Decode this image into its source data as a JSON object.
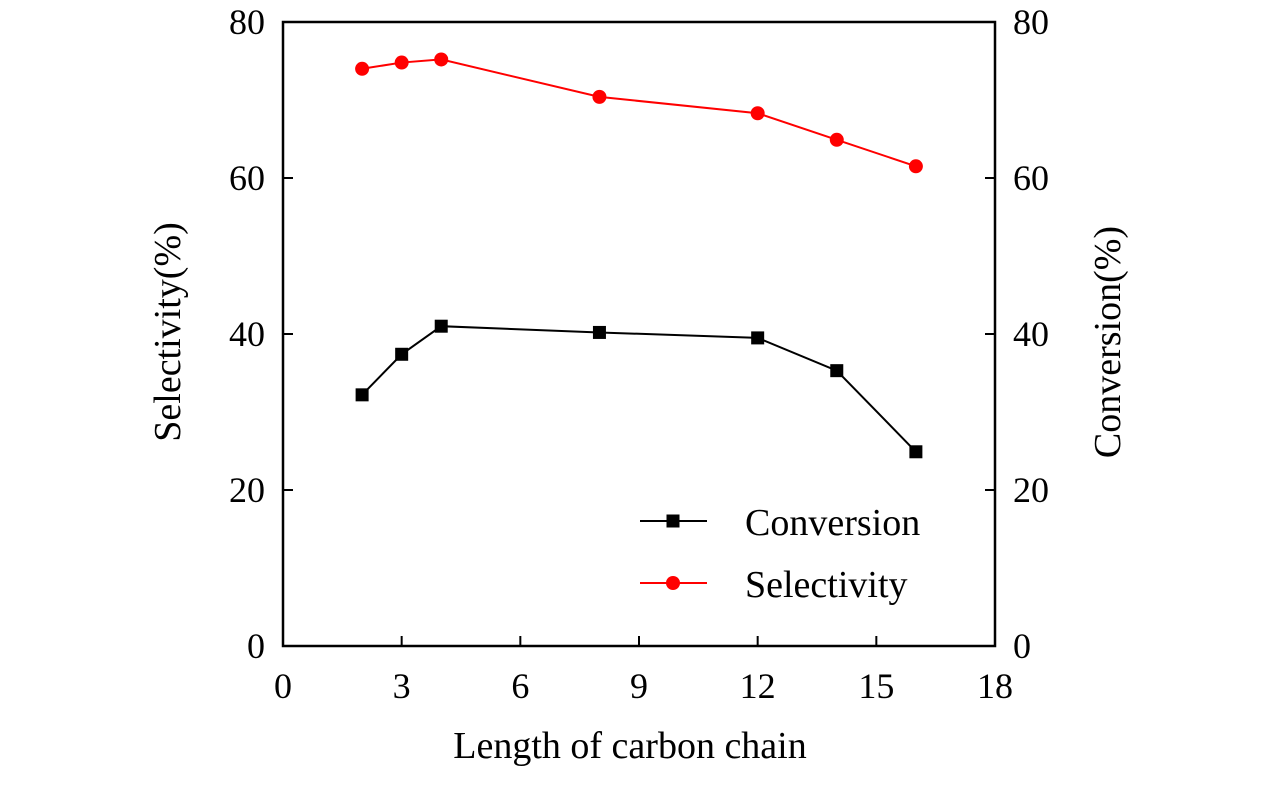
{
  "chart_data": {
    "type": "line",
    "title": "",
    "xlabel": "Length of carbon chain",
    "ylabel_left": "Selectivity(%)",
    "ylabel_right": "Conversion(%)",
    "xlim": [
      0,
      18
    ],
    "ylim": [
      0,
      80
    ],
    "x_ticks": [
      0,
      3,
      6,
      9,
      12,
      15,
      18
    ],
    "y_ticks": [
      0,
      20,
      40,
      60,
      80
    ],
    "grid": false,
    "legend_position": "bottom-right",
    "series": [
      {
        "name": "Conversion",
        "marker": "square",
        "color": "#000000",
        "x": [
          2,
          3,
          4,
          8,
          12,
          14,
          16
        ],
        "values": [
          32.2,
          37.4,
          41.0,
          40.2,
          39.5,
          35.3,
          24.9
        ]
      },
      {
        "name": "Selectivity",
        "marker": "circle",
        "color": "#ff0000",
        "x": [
          2,
          3,
          4,
          8,
          12,
          14,
          16
        ],
        "values": [
          74.0,
          74.8,
          75.2,
          70.4,
          68.3,
          64.9,
          61.5
        ]
      }
    ]
  }
}
